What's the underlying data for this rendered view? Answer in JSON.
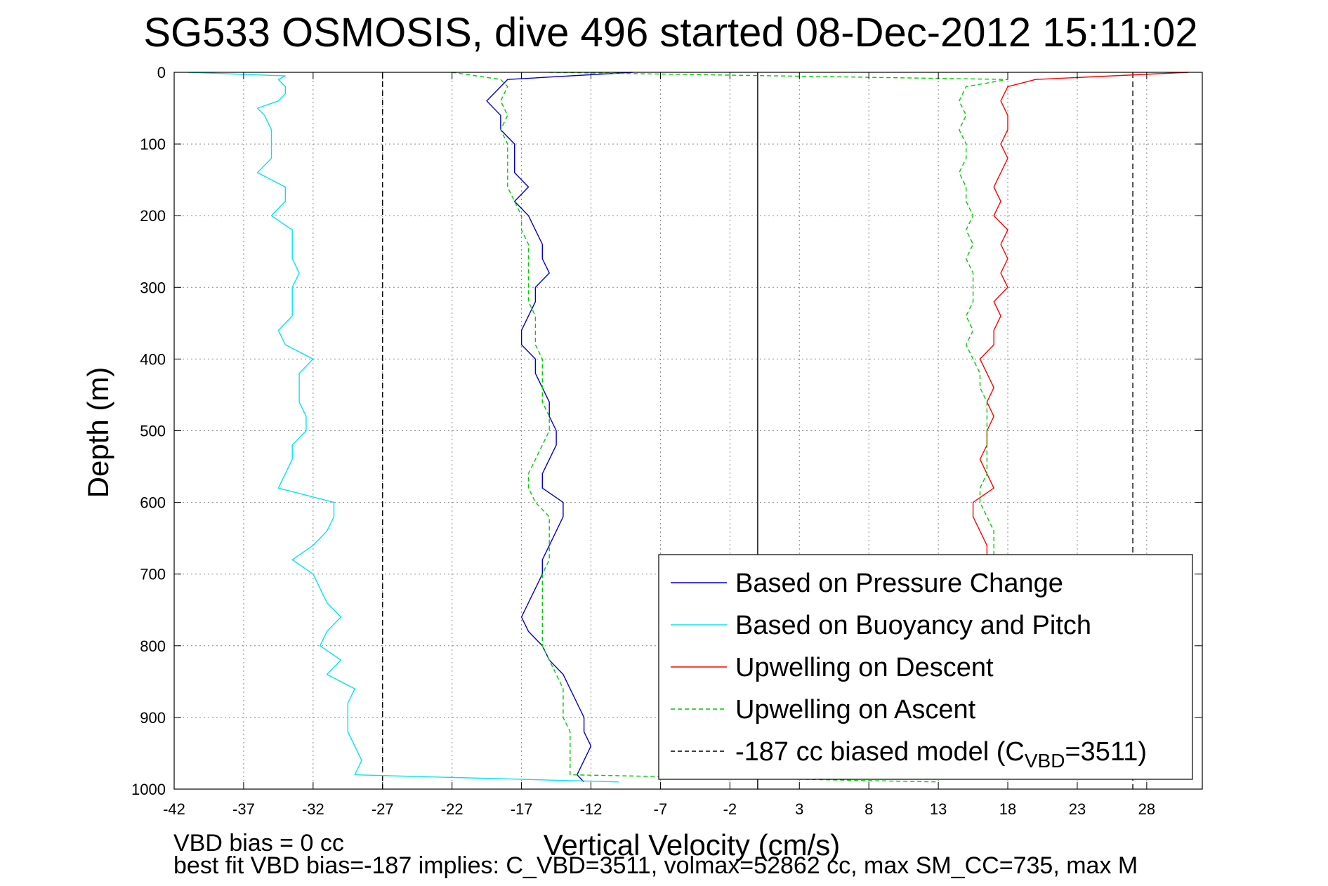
{
  "chart_data": {
    "type": "line",
    "title": "SG533 OSMOSIS, dive 496 started 08-Dec-2012 15:11:02",
    "xlabel": "Vertical Velocity (cm/s)",
    "ylabel": "Depth (m)",
    "xlim": [
      -42,
      32
    ],
    "ylim": [
      0,
      1000
    ],
    "y_reversed": true,
    "x_ticks": [
      -42,
      -37,
      -32,
      -27,
      -22,
      -17,
      -12,
      -7,
      -2,
      3,
      8,
      13,
      18,
      23,
      28
    ],
    "y_ticks": [
      0,
      100,
      200,
      300,
      400,
      500,
      600,
      700,
      800,
      900,
      1000
    ],
    "grid": true,
    "legend_position": "bottom-right",
    "model_lines": [
      {
        "name": "model-left",
        "x": -27,
        "color": "#000000",
        "style": "dashed"
      },
      {
        "name": "zero",
        "x": 0,
        "color": "#000000",
        "style": "solid"
      },
      {
        "name": "model-right",
        "x": 27,
        "color": "#000000",
        "style": "dashed"
      }
    ],
    "series": [
      {
        "name": "Based on Pressure Change",
        "color": "#0000cc",
        "style": "solid",
        "depth": [
          0,
          10,
          20,
          40,
          60,
          80,
          100,
          120,
          140,
          160,
          180,
          200,
          220,
          240,
          260,
          280,
          300,
          320,
          340,
          360,
          380,
          400,
          420,
          440,
          460,
          480,
          500,
          520,
          540,
          560,
          580,
          600,
          620,
          640,
          660,
          680,
          700,
          720,
          740,
          760,
          780,
          800,
          820,
          840,
          860,
          880,
          900,
          920,
          940,
          960,
          980,
          990
        ],
        "values": [
          -9,
          -18,
          -18.5,
          -19.5,
          -18.5,
          -18.5,
          -17.5,
          -17.5,
          -17.5,
          -16.5,
          -17.5,
          -16.5,
          -16,
          -15.5,
          -15.5,
          -15,
          -16,
          -16,
          -16.5,
          -17,
          -17,
          -16,
          -16,
          -15.5,
          -15,
          -15,
          -14.5,
          -14.5,
          -15,
          -15.5,
          -15.5,
          -14,
          -14,
          -14.5,
          -15,
          -15.5,
          -15.5,
          -16,
          -16.5,
          -17,
          -16.5,
          -15.5,
          -15,
          -14,
          -13.5,
          -13,
          -12.5,
          -12.5,
          -12,
          -12.5,
          -13,
          -12.5
        ]
      },
      {
        "name": "Based on Buoyancy and Pitch",
        "color": "#00e5ee",
        "style": "solid",
        "depth": [
          0,
          5,
          10,
          20,
          30,
          40,
          50,
          60,
          80,
          100,
          120,
          140,
          160,
          180,
          200,
          220,
          240,
          260,
          280,
          300,
          320,
          340,
          360,
          380,
          400,
          420,
          440,
          460,
          480,
          500,
          520,
          540,
          560,
          580,
          600,
          620,
          640,
          660,
          680,
          700,
          720,
          740,
          760,
          780,
          800,
          820,
          840,
          860,
          880,
          900,
          920,
          940,
          960,
          980,
          990
        ],
        "values": [
          -41,
          -34,
          -34.5,
          -34,
          -34,
          -34.5,
          -36,
          -35.5,
          -35,
          -35,
          -35,
          -36,
          -34,
          -34,
          -35,
          -33.5,
          -33.5,
          -33.5,
          -33,
          -33.5,
          -33.5,
          -33.5,
          -34.5,
          -34,
          -32,
          -33,
          -33,
          -33,
          -32.5,
          -32.5,
          -33.5,
          -33.5,
          -34,
          -34.5,
          -30.5,
          -30.5,
          -31,
          -32,
          -33.5,
          -32,
          -31.5,
          -31,
          -30,
          -31,
          -31.5,
          -30,
          -31,
          -29,
          -29.5,
          -29.5,
          -29.5,
          -29,
          -28.5,
          -29,
          -10
        ]
      },
      {
        "name": "Upwelling on Descent",
        "color": "#ff0000",
        "style": "solid",
        "depth": [
          0,
          10,
          20,
          40,
          60,
          80,
          100,
          120,
          140,
          160,
          180,
          200,
          220,
          240,
          260,
          280,
          300,
          320,
          340,
          360,
          380,
          400,
          420,
          440,
          460,
          480,
          500,
          520,
          540,
          560,
          580,
          600,
          620,
          640,
          660,
          680
        ],
        "values": [
          31,
          20,
          18,
          17.5,
          18,
          18,
          17.5,
          18,
          17.5,
          17,
          17.5,
          17,
          18,
          17.5,
          18,
          17.5,
          18,
          17,
          17.5,
          17,
          17,
          16,
          16.5,
          17,
          16.5,
          17,
          16.5,
          16.5,
          16,
          16.5,
          17,
          15.5,
          15.5,
          16,
          16.5,
          16.5
        ]
      },
      {
        "name": "Upwelling on Ascent",
        "color": "#00cc00",
        "style": "dashed",
        "depth": [
          0,
          10,
          20,
          40,
          60,
          80,
          100,
          120,
          140,
          160,
          180,
          200,
          220,
          240,
          260,
          280,
          300,
          320,
          340,
          360,
          380,
          400,
          420,
          440,
          460,
          480,
          500,
          520,
          540,
          560,
          580,
          600,
          620,
          640,
          660,
          680
        ],
        "values": [
          -15,
          18,
          15,
          14.5,
          15,
          14.5,
          15,
          15,
          14.5,
          15,
          15,
          15.5,
          15,
          15.5,
          15,
          15.5,
          15.5,
          15.5,
          15,
          15.5,
          15,
          15.5,
          16,
          16,
          16.5,
          16.5,
          16.5,
          16.5,
          16.5,
          16.5,
          16,
          16,
          16.5,
          17,
          17,
          17
        ]
      },
      {
        "name": "Upwelling on Ascent (left profile)",
        "color": "#00cc00",
        "style": "dashed",
        "depth": [
          0,
          10,
          20,
          40,
          60,
          80,
          100,
          120,
          140,
          160,
          180,
          200,
          220,
          240,
          260,
          280,
          300,
          320,
          340,
          360,
          380,
          400,
          420,
          440,
          460,
          480,
          500,
          520,
          540,
          560,
          580,
          600,
          620,
          640,
          660,
          680,
          700,
          720,
          740,
          760,
          780,
          800,
          820,
          840,
          860,
          880,
          900,
          920,
          940,
          960,
          980,
          990
        ],
        "values": [
          -22,
          -18.5,
          -18,
          -18.5,
          -18,
          -18.5,
          -18,
          -18,
          -18,
          -18,
          -17.5,
          -17,
          -17,
          -16.5,
          -16.5,
          -16.5,
          -16.5,
          -16.5,
          -16,
          -16,
          -16,
          -15.5,
          -15.5,
          -15.5,
          -15.5,
          -15,
          -15,
          -15.5,
          -16,
          -16.5,
          -16.5,
          -16,
          -15,
          -15,
          -15,
          -15,
          -15.5,
          -15.5,
          -15.5,
          -15.5,
          -15.5,
          -15.5,
          -15,
          -14.5,
          -14,
          -14,
          -14,
          -13.5,
          -13.5,
          -13.5,
          -13.5,
          13
        ]
      }
    ],
    "legend": [
      {
        "label": "Based on Pressure Change",
        "color": "#0000cc",
        "style": "solid"
      },
      {
        "label": "Based on Buoyancy and Pitch",
        "color": "#00e5ee",
        "style": "solid"
      },
      {
        "label": "Upwelling on Descent",
        "color": "#ff0000",
        "style": "solid"
      },
      {
        "label": "Upwelling on Ascent",
        "color": "#00cc00",
        "style": "dashed"
      },
      {
        "label_pre": "-187 cc biased model (C",
        "label_sub": "VBD",
        "label_post": "=3511)",
        "color": "#000000",
        "style": "dashed"
      }
    ]
  },
  "footer": {
    "line1": "VBD bias = 0 cc",
    "line2": "best fit VBD bias=-187 implies: C_VBD=3511, volmax=52862 cc, max SM_CC=735, max M"
  }
}
